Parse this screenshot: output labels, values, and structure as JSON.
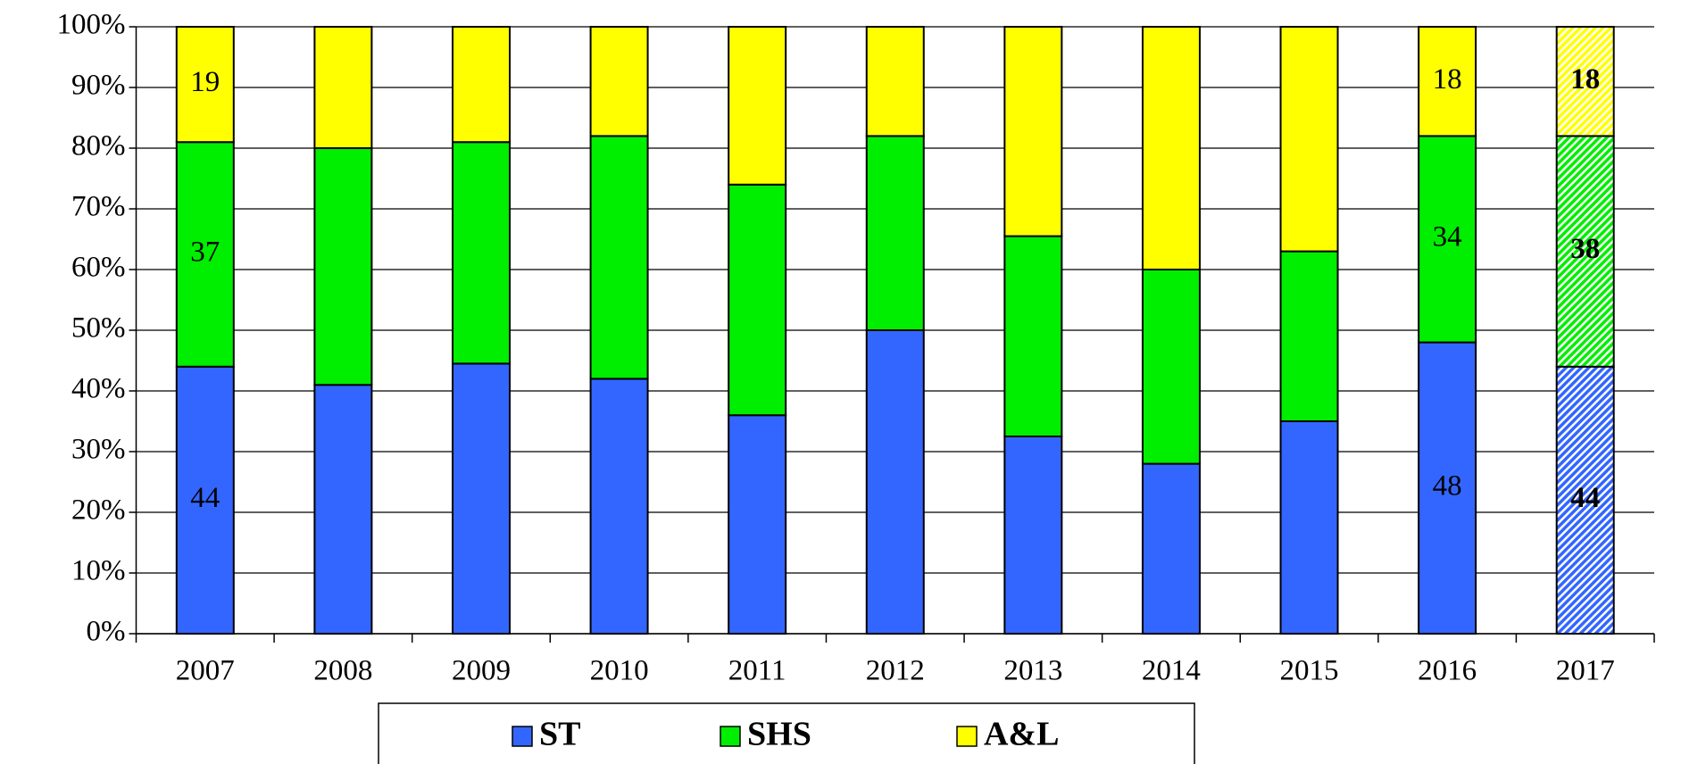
{
  "chart_data": {
    "type": "stacked_bar_100",
    "categories": [
      "2007",
      "2008",
      "2009",
      "2010",
      "2011",
      "2012",
      "2013",
      "2014",
      "2015",
      "2016",
      "2017"
    ],
    "series": [
      {
        "name": "ST",
        "color": "#3366ff",
        "values": [
          44,
          41,
          44.5,
          42,
          36,
          50,
          32.5,
          28,
          35,
          48,
          44
        ],
        "value_labels": [
          "44",
          null,
          null,
          null,
          null,
          null,
          null,
          null,
          null,
          "48",
          "44"
        ]
      },
      {
        "name": "SHS",
        "color": "#00ee00",
        "values": [
          37,
          39,
          36.5,
          40,
          38,
          32,
          33,
          32,
          28,
          34,
          38
        ],
        "value_labels": [
          "37",
          null,
          null,
          null,
          null,
          null,
          null,
          null,
          null,
          "34",
          "38"
        ]
      },
      {
        "name": "A&L",
        "color": "#ffff00",
        "values": [
          19,
          20,
          19,
          18,
          26,
          18,
          34.5,
          40,
          37,
          18,
          18
        ],
        "value_labels": [
          "19",
          null,
          null,
          null,
          null,
          null,
          null,
          null,
          null,
          "18",
          "18"
        ]
      }
    ],
    "hatched_last": true,
    "ylim": [
      0,
      100
    ],
    "yticks": [
      {
        "value": 0,
        "label": "0%"
      },
      {
        "value": 10,
        "label": "10%"
      },
      {
        "value": 20,
        "label": "20%"
      },
      {
        "value": 30,
        "label": "30%"
      },
      {
        "value": 40,
        "label": "40%"
      },
      {
        "value": 50,
        "label": "50%"
      },
      {
        "value": 60,
        "label": "60%"
      },
      {
        "value": 70,
        "label": "70%"
      },
      {
        "value": 80,
        "label": "80%"
      },
      {
        "value": 90,
        "label": "90%"
      },
      {
        "value": 100,
        "label": "100%"
      }
    ],
    "grid": true,
    "legend": "bottom"
  }
}
